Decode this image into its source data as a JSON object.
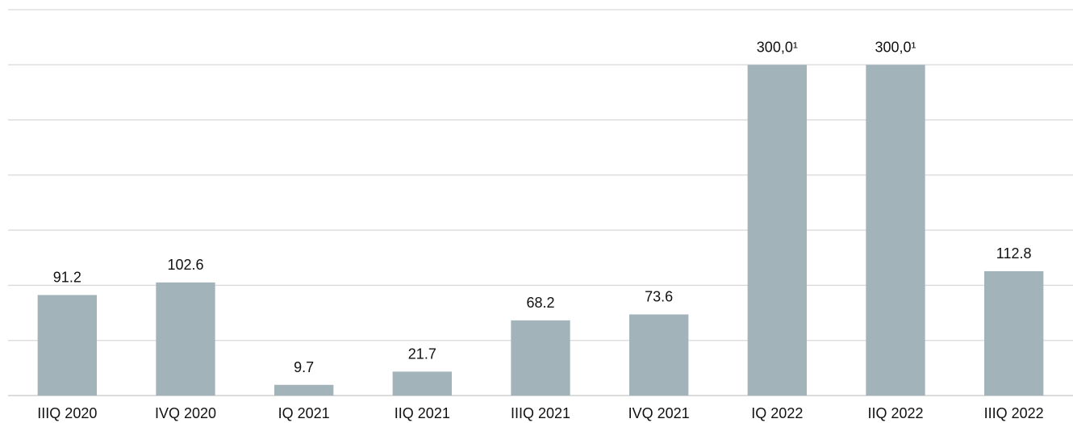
{
  "chart_data": {
    "type": "bar",
    "categories": [
      "IIIQ 2020",
      "IVQ 2020",
      "IQ 2021",
      "IIQ 2021",
      "IIIQ 2021",
      "IVQ 2021",
      "IQ 2022",
      "IIQ 2022",
      "IIIQ 2022"
    ],
    "values": [
      91.2,
      102.6,
      9.7,
      21.7,
      68.2,
      73.6,
      300.0,
      300.0,
      112.8
    ],
    "data_labels": [
      "91.2",
      "102.6",
      "9.7",
      "21.7",
      "68.2",
      "73.6",
      "300,0¹",
      "300,0¹",
      "112.8"
    ],
    "title": "",
    "xlabel": "",
    "ylabel": "",
    "ylim": [
      0,
      350
    ],
    "grid": true,
    "legend": "none",
    "colors": {
      "bar": "#a2b4ba",
      "grid": "#d9d9d9",
      "text": "#111111"
    }
  }
}
